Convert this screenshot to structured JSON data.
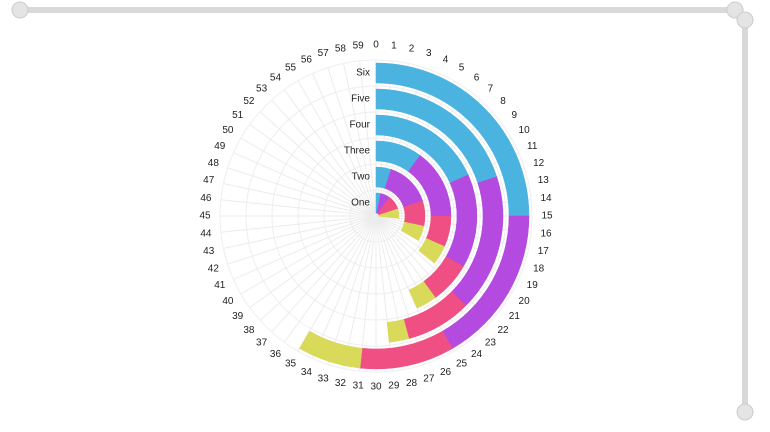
{
  "chart_data": {
    "type": "radial-stacked-bar",
    "categories": [
      "One",
      "Two",
      "Three",
      "Four",
      "Five",
      "Six"
    ],
    "series": [
      {
        "color": "#4ab3e0",
        "values": [
          2,
          3,
          6,
          11,
          12,
          15
        ]
      },
      {
        "color": "#b44ae0",
        "values": [
          4,
          9,
          9,
          9,
          10.5,
          10
        ]
      },
      {
        "color": "#ef4f82",
        "values": [
          6,
          5,
          4,
          4,
          5,
          6
        ]
      },
      {
        "color": "#d9d95a",
        "values": [
          4,
          3,
          2.5,
          2,
          1.5,
          4
        ]
      }
    ],
    "xlim": [
      0,
      60
    ],
    "xticks": [
      0,
      1,
      2,
      3,
      4,
      5,
      6,
      7,
      8,
      9,
      10,
      11,
      12,
      13,
      14,
      15,
      16,
      17,
      18,
      19,
      20,
      21,
      22,
      23,
      24,
      25,
      26,
      27,
      28,
      29,
      30,
      31,
      32,
      33,
      34,
      35,
      36,
      37,
      38,
      39,
      40,
      41,
      42,
      43,
      44,
      45,
      46,
      47,
      48,
      49,
      50,
      51,
      52,
      53,
      54,
      55,
      56,
      57,
      58,
      59
    ],
    "grid": true
  }
}
